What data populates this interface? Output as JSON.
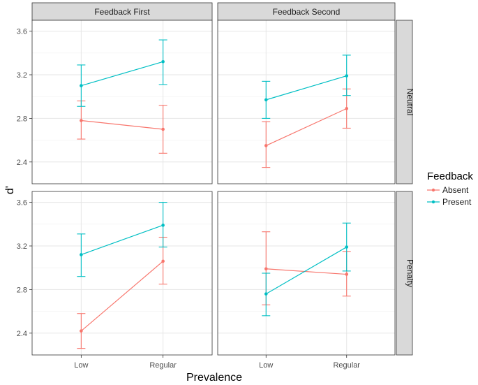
{
  "chart_data": {
    "type": "line",
    "kind": "faceted line plot with error bars",
    "xlabel": "Prevalence",
    "ylabel": "d'",
    "categories": [
      "Low",
      "Regular"
    ],
    "ylim": [
      2.2,
      3.7
    ],
    "yticks": [
      2.4,
      2.8,
      3.2,
      3.6
    ],
    "ytick_labels": [
      "2.4",
      "2.8",
      "3.2",
      "3.6"
    ],
    "grid": true,
    "legend": {
      "title": "Feedback",
      "placement": "right",
      "entries": [
        {
          "name": "Absent",
          "color": "#F8766D"
        },
        {
          "name": "Present",
          "color": "#00BFC4"
        }
      ]
    },
    "col_strips": [
      "Feedback First",
      "Feedback Second"
    ],
    "row_strips": [
      "Neutral",
      "Penalty"
    ],
    "panels": [
      {
        "col": 0,
        "row": 0,
        "series": [
          {
            "name": "Absent",
            "values": [
              2.78,
              2.7
            ],
            "lower": [
              2.61,
              2.48
            ],
            "upper": [
              2.96,
              2.92
            ]
          },
          {
            "name": "Present",
            "values": [
              3.1,
              3.32
            ],
            "lower": [
              2.91,
              3.11
            ],
            "upper": [
              3.29,
              3.52
            ]
          }
        ]
      },
      {
        "col": 1,
        "row": 0,
        "series": [
          {
            "name": "Absent",
            "values": [
              2.55,
              2.89
            ],
            "lower": [
              2.35,
              2.71
            ],
            "upper": [
              2.77,
              3.07
            ]
          },
          {
            "name": "Present",
            "values": [
              2.97,
              3.19
            ],
            "lower": [
              2.8,
              3.01
            ],
            "upper": [
              3.14,
              3.38
            ]
          }
        ]
      },
      {
        "col": 0,
        "row": 1,
        "series": [
          {
            "name": "Absent",
            "values": [
              2.42,
              3.06
            ],
            "lower": [
              2.26,
              2.85
            ],
            "upper": [
              2.58,
              3.28
            ]
          },
          {
            "name": "Present",
            "values": [
              3.12,
              3.39
            ],
            "lower": [
              2.92,
              3.19
            ],
            "upper": [
              3.31,
              3.6
            ]
          }
        ]
      },
      {
        "col": 1,
        "row": 1,
        "series": [
          {
            "name": "Absent",
            "values": [
              2.99,
              2.94
            ],
            "lower": [
              2.66,
              2.74
            ],
            "upper": [
              3.33,
              3.15
            ]
          },
          {
            "name": "Present",
            "values": [
              2.76,
              3.19
            ],
            "lower": [
              2.56,
              2.97
            ],
            "upper": [
              2.95,
              3.41
            ]
          }
        ]
      }
    ]
  }
}
